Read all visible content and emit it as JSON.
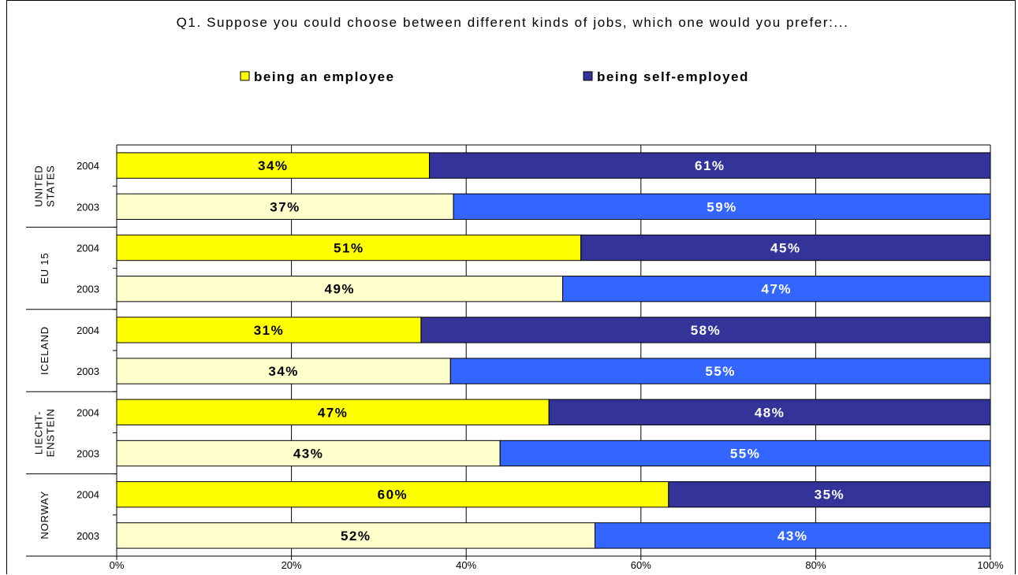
{
  "chart_data": {
    "type": "bar",
    "orientation": "horizontal",
    "stacked": "100%",
    "title": "Q1. Suppose you could choose between different kinds of jobs, which one would you prefer:...",
    "legend": [
      {
        "name": "being an employee",
        "color": "#ffff00"
      },
      {
        "name": "being self-employed",
        "color": "#333399"
      }
    ],
    "legend_position": "top",
    "x_ticks": [
      "0%",
      "20%",
      "40%",
      "60%",
      "80%",
      "100%"
    ],
    "xlim": [
      0,
      100
    ],
    "groups": [
      {
        "label": "UNITED STATES",
        "label_lines": [
          "UNITED",
          "STATES"
        ],
        "rows": [
          {
            "year": "2004",
            "employee": 34,
            "self_employed": 61,
            "employee_label": "34%",
            "self_label": "61%"
          },
          {
            "year": "2003",
            "employee": 37,
            "self_employed": 59,
            "employee_label": "37%",
            "self_label": "59%"
          }
        ]
      },
      {
        "label": "EU 15",
        "label_lines": [
          "EU 15"
        ],
        "rows": [
          {
            "year": "2004",
            "employee": 51,
            "self_employed": 45,
            "employee_label": "51%",
            "self_label": "45%"
          },
          {
            "year": "2003",
            "employee": 49,
            "self_employed": 47,
            "employee_label": "49%",
            "self_label": "47%"
          }
        ]
      },
      {
        "label": "ICELAND",
        "label_lines": [
          "ICELAND"
        ],
        "rows": [
          {
            "year": "2004",
            "employee": 31,
            "self_employed": 58,
            "employee_label": "31%",
            "self_label": "58%"
          },
          {
            "year": "2003",
            "employee": 34,
            "self_employed": 55,
            "employee_label": "34%",
            "self_label": "55%"
          }
        ]
      },
      {
        "label": "LIECHT-ENSTEIN",
        "label_lines": [
          "LIECHT-",
          "ENSTEIN"
        ],
        "rows": [
          {
            "year": "2004",
            "employee": 47,
            "self_employed": 48,
            "employee_label": "47%",
            "self_label": "48%"
          },
          {
            "year": "2003",
            "employee": 43,
            "self_employed": 55,
            "employee_label": "43%",
            "self_label": "55%"
          }
        ]
      },
      {
        "label": "NORWAY",
        "label_lines": [
          "NORWAY"
        ],
        "rows": [
          {
            "year": "2004",
            "employee": 60,
            "self_employed": 35,
            "employee_label": "60%",
            "self_label": "35%"
          },
          {
            "year": "2003",
            "employee": 52,
            "self_employed": 43,
            "employee_label": "52%",
            "self_label": "43%"
          }
        ]
      }
    ],
    "colors": {
      "employee_2004": "#ffff00",
      "employee_2003": "#ffffcc",
      "self_2004": "#333399",
      "self_2003": "#3366ff"
    },
    "grid": true
  }
}
